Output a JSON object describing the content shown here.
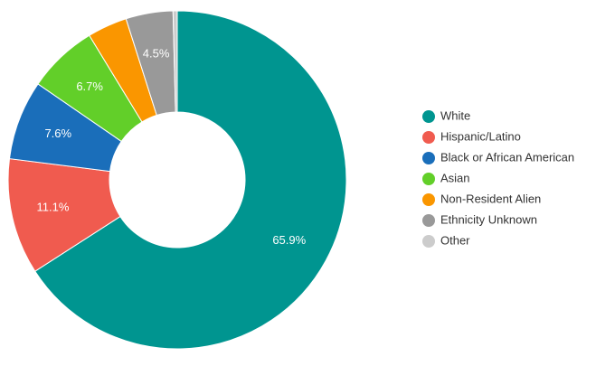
{
  "chart_data": {
    "type": "donut",
    "categories": [
      "White",
      "Hispanic/Latino",
      "Black or African American",
      "Asian",
      "Non-Resident Alien",
      "Ethnicity Unknown",
      "Other"
    ],
    "values": [
      65.9,
      11.1,
      7.6,
      6.7,
      3.8,
      4.5,
      0.4
    ],
    "value_labels": [
      "65.9%",
      "11.1%",
      "7.6%",
      "6.7%",
      null,
      "4.5%",
      null
    ],
    "colors": [
      "#009590",
      "#f05b4f",
      "#1a6eba",
      "#62cf29",
      "#fa9600",
      "#999999",
      "#cccccc"
    ],
    "legend": "right"
  }
}
